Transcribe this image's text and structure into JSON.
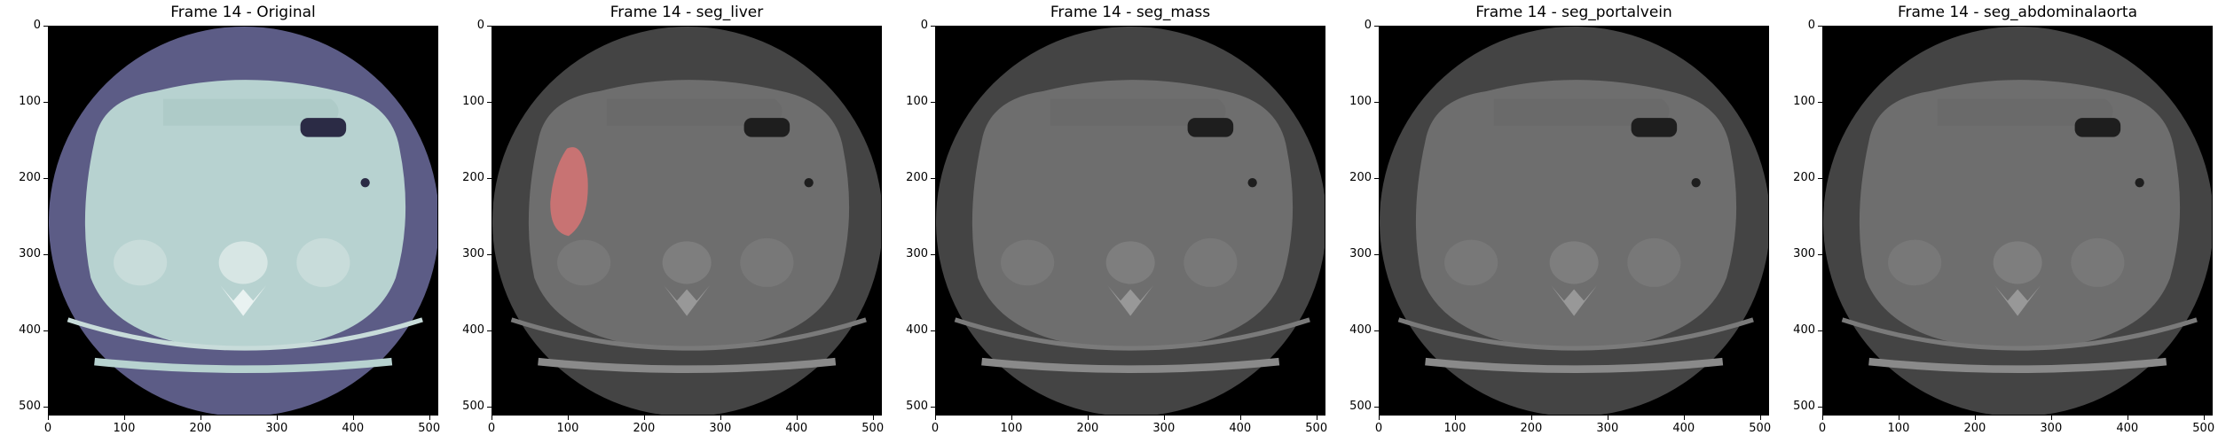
{
  "figure": {
    "panels": [
      {
        "title": "Frame 14 - Original",
        "variant": "original",
        "overlay": null
      },
      {
        "title": "Frame 14 - seg_liver",
        "variant": "gray",
        "overlay": "liver"
      },
      {
        "title": "Frame 14 - seg_mass",
        "variant": "gray",
        "overlay": null
      },
      {
        "title": "Frame 14 - seg_portalvein",
        "variant": "gray",
        "overlay": null
      },
      {
        "title": "Frame 14 - seg_abdominalaorta",
        "variant": "gray",
        "overlay": null
      }
    ],
    "y_ticks": [
      "0",
      "100",
      "200",
      "300",
      "400",
      "500"
    ],
    "x_ticks": [
      "0",
      "100",
      "200",
      "300",
      "400",
      "500"
    ],
    "image_extent": [
      0,
      512
    ],
    "colors": {
      "original_disc": "#5c5c86",
      "original_body": "#b7d2d0",
      "gray_disc": "#444444",
      "gray_body": "#6e6e6e",
      "liver_overlay": "#d87474"
    }
  }
}
